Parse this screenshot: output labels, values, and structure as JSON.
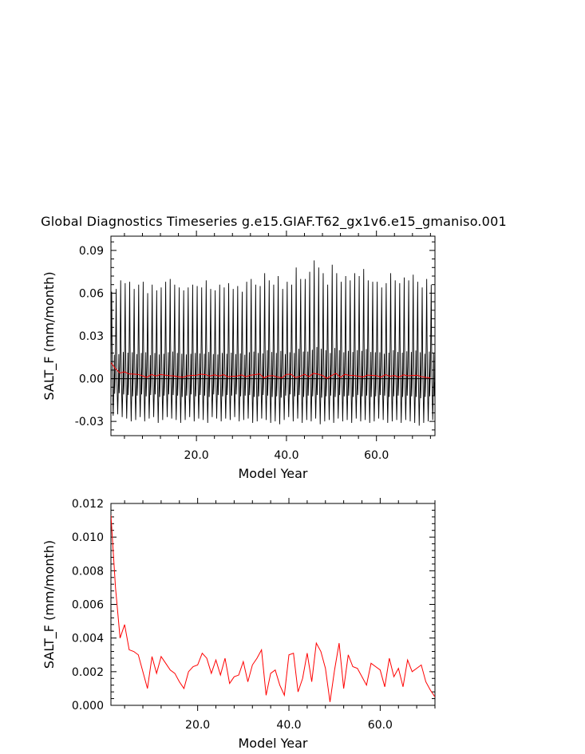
{
  "page": {
    "title": "Global Diagnostics Timeseries g.e15.GIAF.T62_gx1v6.e15_gmaniso.001"
  },
  "colors": {
    "monthly_series": "#000000",
    "annual_series": "#ff0000"
  },
  "chart_data": [
    {
      "type": "line",
      "title": "Global Diagnostics Timeseries g.e15.GIAF.T62_gx1v6.e15_gmaniso.001",
      "xlabel": "Model Year",
      "ylabel": "SALT_F (mm/month)",
      "xlim": [
        1,
        73
      ],
      "ylim": [
        -0.04,
        0.1
      ],
      "xticks": [
        20.0,
        40.0,
        60.0
      ],
      "xtick_labels": [
        "20.0",
        "40.0",
        "60.0"
      ],
      "yticks": [
        -0.03,
        0.0,
        0.03,
        0.06,
        0.09
      ],
      "ytick_labels": [
        "-0.03",
        "0.00",
        "0.03",
        "0.06",
        "0.09"
      ],
      "grid": false,
      "legend": "none",
      "series": [
        {
          "color": "#000000",
          "points_per_year": 12,
          "annual_peaks": [
            0.061,
            0.063,
            0.069,
            0.067,
            0.068,
            0.063,
            0.066,
            0.068,
            0.06,
            0.066,
            0.062,
            0.064,
            0.068,
            0.07,
            0.066,
            0.064,
            0.062,
            0.064,
            0.066,
            0.065,
            0.064,
            0.069,
            0.063,
            0.062,
            0.066,
            0.064,
            0.067,
            0.063,
            0.065,
            0.061,
            0.068,
            0.07,
            0.066,
            0.065,
            0.074,
            0.069,
            0.066,
            0.072,
            0.063,
            0.068,
            0.066,
            0.078,
            0.07,
            0.07,
            0.075,
            0.083,
            0.078,
            0.074,
            0.066,
            0.08,
            0.074,
            0.068,
            0.072,
            0.069,
            0.074,
            0.072,
            0.077,
            0.069,
            0.068,
            0.068,
            0.064,
            0.067,
            0.074,
            0.069,
            0.067,
            0.071,
            0.069,
            0.073,
            0.068,
            0.064,
            0.07,
            0.066
          ],
          "annual_troughs": [
            -0.026,
            -0.025,
            -0.027,
            -0.028,
            -0.03,
            -0.029,
            -0.027,
            -0.03,
            -0.028,
            -0.027,
            -0.031,
            -0.029,
            -0.027,
            -0.028,
            -0.029,
            -0.031,
            -0.029,
            -0.027,
            -0.03,
            -0.028,
            -0.029,
            -0.031,
            -0.027,
            -0.028,
            -0.03,
            -0.028,
            -0.029,
            -0.027,
            -0.03,
            -0.029,
            -0.028,
            -0.031,
            -0.03,
            -0.028,
            -0.029,
            -0.031,
            -0.03,
            -0.032,
            -0.029,
            -0.027,
            -0.03,
            -0.028,
            -0.031,
            -0.029,
            -0.03,
            -0.028,
            -0.032,
            -0.03,
            -0.029,
            -0.031,
            -0.028,
            -0.03,
            -0.029,
            -0.031,
            -0.028,
            -0.03,
            -0.029,
            -0.031,
            -0.03,
            -0.028,
            -0.029,
            -0.031,
            -0.03,
            -0.029,
            -0.031,
            -0.029,
            -0.03,
            -0.031,
            -0.033,
            -0.031,
            -0.03,
            -0.029
          ]
        },
        {
          "color": "#ff0000",
          "x": [
            1,
            2,
            3,
            4,
            5,
            6,
            7,
            8,
            9,
            10,
            11,
            12,
            13,
            14,
            15,
            16,
            17,
            18,
            19,
            20,
            21,
            22,
            23,
            24,
            25,
            26,
            27,
            28,
            29,
            30,
            31,
            32,
            33,
            34,
            35,
            36,
            37,
            38,
            39,
            40,
            41,
            42,
            43,
            44,
            45,
            46,
            47,
            48,
            49,
            50,
            51,
            52,
            53,
            54,
            55,
            56,
            57,
            58,
            59,
            60,
            61,
            62,
            63,
            64,
            65,
            66,
            67,
            68,
            69,
            70,
            71,
            72
          ],
          "y": [
            0.0113,
            0.007,
            0.004,
            0.0048,
            0.0033,
            0.0032,
            0.003,
            0.002,
            0.001,
            0.0029,
            0.0019,
            0.0029,
            0.0025,
            0.0021,
            0.0019,
            0.0014,
            0.001,
            0.002,
            0.0023,
            0.0024,
            0.0031,
            0.0028,
            0.0019,
            0.0027,
            0.0018,
            0.0028,
            0.0013,
            0.0017,
            0.0018,
            0.0026,
            0.0014,
            0.0024,
            0.0028,
            0.0033,
            0.0006,
            0.0019,
            0.0021,
            0.0012,
            0.0006,
            0.003,
            0.0031,
            0.0008,
            0.0016,
            0.0031,
            0.0014,
            0.0037,
            0.0032,
            0.0022,
            0.0002,
            0.0021,
            0.0037,
            0.001,
            0.003,
            0.0023,
            0.0022,
            0.0017,
            0.0012,
            0.0025,
            0.0023,
            0.0021,
            0.0011,
            0.0028,
            0.0017,
            0.0022,
            0.0011,
            0.0027,
            0.002,
            0.0022,
            0.0024,
            0.0014,
            0.0009,
            0.0005
          ]
        }
      ]
    },
    {
      "type": "line",
      "title": "",
      "xlabel": "Model Year",
      "ylabel": "SALT_F (mm/month)",
      "xlim": [
        1,
        72
      ],
      "ylim": [
        0.0,
        0.012
      ],
      "xticks": [
        20.0,
        40.0,
        60.0
      ],
      "xtick_labels": [
        "20.0",
        "40.0",
        "60.0"
      ],
      "yticks": [
        0.0,
        0.002,
        0.004,
        0.006,
        0.008,
        0.01,
        0.012
      ],
      "ytick_labels": [
        "0.000",
        "0.002",
        "0.004",
        "0.006",
        "0.008",
        "0.010",
        "0.012"
      ],
      "grid": false,
      "legend": "none",
      "series": [
        {
          "color": "#ff0000",
          "x": [
            1,
            2,
            3,
            4,
            5,
            6,
            7,
            8,
            9,
            10,
            11,
            12,
            13,
            14,
            15,
            16,
            17,
            18,
            19,
            20,
            21,
            22,
            23,
            24,
            25,
            26,
            27,
            28,
            29,
            30,
            31,
            32,
            33,
            34,
            35,
            36,
            37,
            38,
            39,
            40,
            41,
            42,
            43,
            44,
            45,
            46,
            47,
            48,
            49,
            50,
            51,
            52,
            53,
            54,
            55,
            56,
            57,
            58,
            59,
            60,
            61,
            62,
            63,
            64,
            65,
            66,
            67,
            68,
            69,
            70,
            71,
            72
          ],
          "y": [
            0.0113,
            0.007,
            0.004,
            0.0048,
            0.0033,
            0.0032,
            0.003,
            0.002,
            0.001,
            0.0029,
            0.0019,
            0.0029,
            0.0025,
            0.0021,
            0.0019,
            0.0014,
            0.001,
            0.002,
            0.0023,
            0.0024,
            0.0031,
            0.0028,
            0.0019,
            0.0027,
            0.0018,
            0.0028,
            0.0013,
            0.0017,
            0.0018,
            0.0026,
            0.0014,
            0.0024,
            0.0028,
            0.0033,
            0.0006,
            0.0019,
            0.0021,
            0.0012,
            0.0006,
            0.003,
            0.0031,
            0.0008,
            0.0016,
            0.0031,
            0.0014,
            0.0037,
            0.0032,
            0.0022,
            0.0002,
            0.0021,
            0.0037,
            0.001,
            0.003,
            0.0023,
            0.0022,
            0.0017,
            0.0012,
            0.0025,
            0.0023,
            0.0021,
            0.0011,
            0.0028,
            0.0017,
            0.0022,
            0.0011,
            0.0027,
            0.002,
            0.0022,
            0.0024,
            0.0014,
            0.0009,
            0.0005
          ]
        }
      ]
    }
  ]
}
